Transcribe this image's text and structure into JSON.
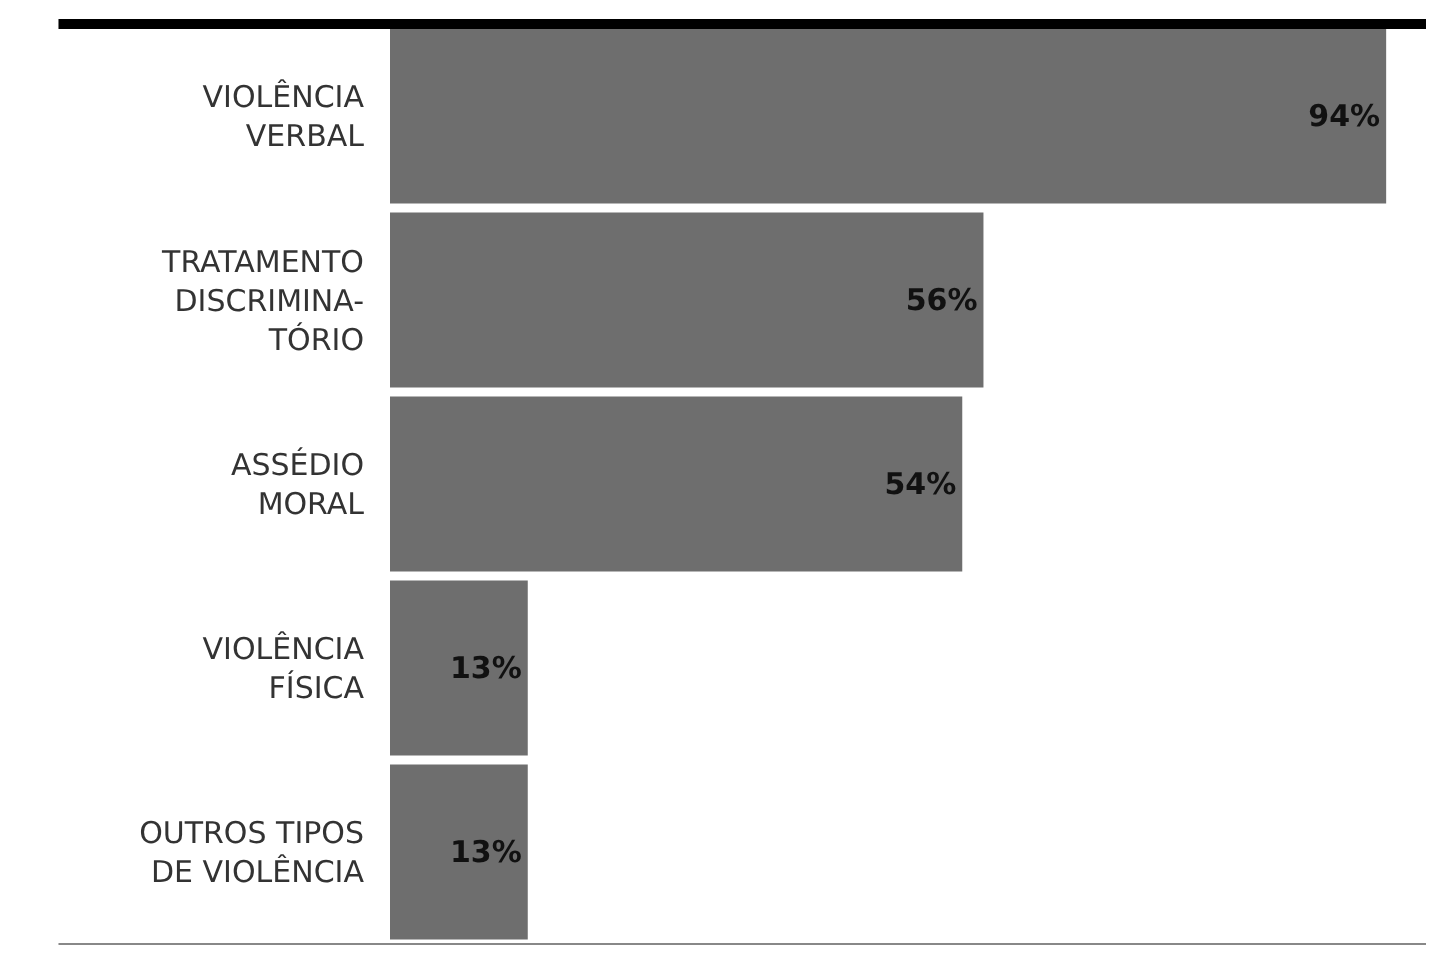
{
  "chart_data": {
    "type": "bar",
    "orientation": "horizontal",
    "categories": [
      "VIOLÊNCIA\nVERBAL",
      "TRATAMENTO\nDISCRIMINA-\nTÓRIO",
      "ASSÉDIO\nMORAL",
      "VIOLÊNCIA\nFÍSICA",
      "OUTROS TIPOS\nDE VIOLÊNCIA"
    ],
    "values": [
      94,
      56,
      54,
      13,
      13
    ],
    "value_labels": [
      "94%",
      "56%",
      "54%",
      "13%",
      "13%"
    ],
    "color": "#6e6e6e",
    "tick_labels": "y",
    "legend": false
  }
}
